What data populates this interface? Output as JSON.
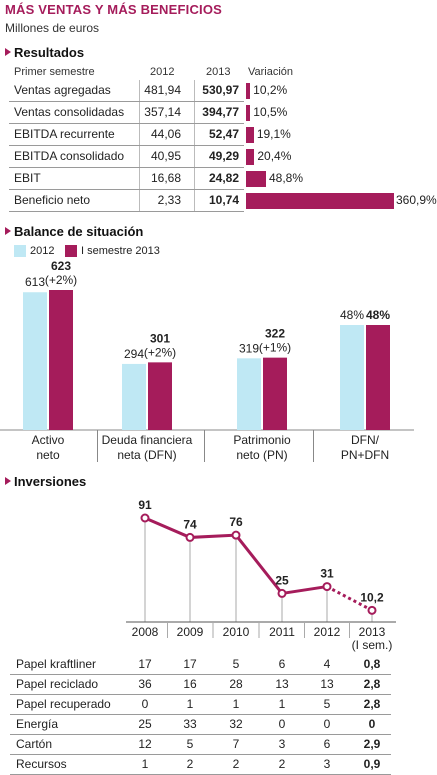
{
  "title": "MÁS VENTAS Y MÁS BENEFICIOS",
  "subtitle": "Millones de euros",
  "results": {
    "heading": "Resultados",
    "col_label": "Primer semestre",
    "col_2012": "2012",
    "col_2013": "2013",
    "col_var": "Variación",
    "rows": [
      {
        "label": "Ventas agregadas",
        "v2012": "481,94",
        "v2013": "530,97",
        "var": "10,2%"
      },
      {
        "label": "Ventas consolidadas",
        "v2012": "357,14",
        "v2013": "394,77",
        "var": "10,5%"
      },
      {
        "label": "EBITDA recurrente",
        "v2012": "44,06",
        "v2013": "52,47",
        "var": "19,1%"
      },
      {
        "label": "EBITDA consolidado",
        "v2012": "40,95",
        "v2013": "49,29",
        "var": "20,4%"
      },
      {
        "label": "EBIT",
        "v2012": "16,68",
        "v2013": "24,82",
        "var": "48,8%"
      },
      {
        "label": "Beneficio neto",
        "v2012": "2,33",
        "v2013": "10,74",
        "var": "360,9%"
      }
    ]
  },
  "balance": {
    "heading": "Balance de situación",
    "legend_2012": "2012",
    "legend_2013": "I semestre 2013",
    "groups": [
      {
        "label1": "Activo",
        "label2": "neto",
        "v2012": "613",
        "v2013": "623",
        "chg": "(+2%)"
      },
      {
        "label1": "Deuda financiera",
        "label2": "neta (DFN)",
        "v2012": "294",
        "v2013": "301",
        "chg": "(+2%)"
      },
      {
        "label1": "Patrimonio",
        "label2": "neto (PN)",
        "v2012": "319",
        "v2013": "322",
        "chg": "(+1%)"
      },
      {
        "label1": "DFN/",
        "label2": "PN+DFN",
        "v2012": "48%",
        "v2013": "48%",
        "chg": ""
      }
    ]
  },
  "inversiones": {
    "heading": "Inversiones",
    "years": [
      "2008",
      "2009",
      "2010",
      "2011",
      "2012",
      "2013"
    ],
    "year_note": "(I sem.)",
    "rows": [
      {
        "label": "Papel kraftliner",
        "values": [
          "17",
          "17",
          "5",
          "6",
          "4",
          "0,8"
        ]
      },
      {
        "label": "Papel reciclado",
        "values": [
          "36",
          "16",
          "28",
          "13",
          "13",
          "2,8"
        ]
      },
      {
        "label": "Papel recuperado",
        "values": [
          "0",
          "1",
          "1",
          "1",
          "5",
          "2,8"
        ]
      },
      {
        "label": "Energía",
        "values": [
          "25",
          "33",
          "32",
          "0",
          "0",
          "0"
        ]
      },
      {
        "label": "Cartón",
        "values": [
          "12",
          "5",
          "7",
          "3",
          "6",
          "2,9"
        ]
      },
      {
        "label": "Recursos",
        "values": [
          "1",
          "2",
          "2",
          "2",
          "3",
          "0,9"
        ]
      }
    ]
  },
  "chart_data": [
    {
      "type": "bar",
      "title": "Resultados",
      "categories": [
        "Ventas agregadas",
        "Ventas consolidadas",
        "EBITDA recurrente",
        "EBITDA consolidado",
        "EBIT",
        "Beneficio neto"
      ],
      "values": [
        10.2,
        10.5,
        19.1,
        20.4,
        48.8,
        360.9
      ]
    },
    {
      "type": "bar",
      "title": "Balance de situación",
      "categories": [
        "Activo neto",
        "Deuda financiera neta (DFN)",
        "Patrimonio neto (PN)",
        "DFN/PN+DFN"
      ],
      "series": [
        {
          "name": "2012",
          "values": [
            613,
            294,
            319,
            48
          ]
        },
        {
          "name": "I semestre 2013",
          "values": [
            623,
            301,
            322,
            48
          ]
        }
      ]
    },
    {
      "type": "line",
      "title": "Inversiones",
      "x": [
        "2008",
        "2009",
        "2010",
        "2011",
        "2012",
        "2013"
      ],
      "values": [
        91,
        74,
        76,
        25,
        31,
        10.2
      ],
      "labels": [
        "91",
        "74",
        "76",
        "25",
        "31",
        "10,2"
      ]
    }
  ],
  "colors": {
    "accent": "#a51c5b",
    "light": "#bfe8f4"
  }
}
